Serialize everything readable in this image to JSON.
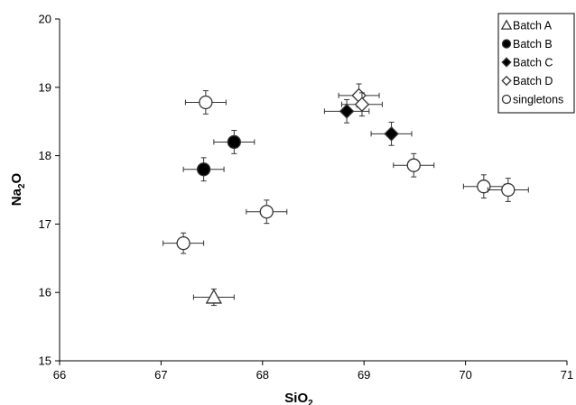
{
  "chart_data": {
    "type": "scatter",
    "xlabel_main": "SiO",
    "xlabel_sub": "2",
    "ylabel_main": "Na",
    "ylabel_sub": "2",
    "ylabel_tail": "O",
    "xlim": [
      66,
      71
    ],
    "ylim": [
      15,
      20
    ],
    "xticks": [
      "66",
      "67",
      "68",
      "69",
      "70",
      "71"
    ],
    "yticks": [
      "15",
      "16",
      "17",
      "18",
      "19",
      "20"
    ],
    "grid": false,
    "legend_placement": "top-right",
    "series": [
      {
        "name": "Batch A",
        "marker": "triangle",
        "fill": "#ffffff",
        "points": [
          {
            "x": 67.52,
            "y": 15.93,
            "xerr": 0.2,
            "yerr": 0.12
          }
        ]
      },
      {
        "name": "Batch B",
        "marker": "circle",
        "fill": "#000000",
        "points": [
          {
            "x": 67.42,
            "y": 17.8,
            "xerr": 0.2,
            "yerr": 0.17
          },
          {
            "x": 67.72,
            "y": 18.2,
            "xerr": 0.2,
            "yerr": 0.17
          }
        ]
      },
      {
        "name": "Batch C",
        "marker": "diamond",
        "fill": "#000000",
        "points": [
          {
            "x": 68.83,
            "y": 18.65,
            "xerr": 0.22,
            "yerr": 0.17
          },
          {
            "x": 69.27,
            "y": 18.32,
            "xerr": 0.2,
            "yerr": 0.17
          }
        ]
      },
      {
        "name": "Batch D",
        "marker": "diamond",
        "fill": "#ffffff",
        "points": [
          {
            "x": 68.95,
            "y": 18.88,
            "xerr": 0.2,
            "yerr": 0.17
          },
          {
            "x": 68.98,
            "y": 18.75,
            "xerr": 0.2,
            "yerr": 0.17
          }
        ]
      },
      {
        "name": "singletons",
        "marker": "circle",
        "fill": "#ffffff",
        "points": [
          {
            "x": 67.44,
            "y": 18.78,
            "xerr": 0.2,
            "yerr": 0.17
          },
          {
            "x": 67.22,
            "y": 16.72,
            "xerr": 0.2,
            "yerr": 0.15
          },
          {
            "x": 68.04,
            "y": 17.18,
            "xerr": 0.2,
            "yerr": 0.17
          },
          {
            "x": 69.49,
            "y": 17.86,
            "xerr": 0.2,
            "yerr": 0.17
          },
          {
            "x": 70.18,
            "y": 17.55,
            "xerr": 0.2,
            "yerr": 0.17
          },
          {
            "x": 70.42,
            "y": 17.5,
            "xerr": 0.2,
            "yerr": 0.17
          }
        ]
      }
    ]
  }
}
